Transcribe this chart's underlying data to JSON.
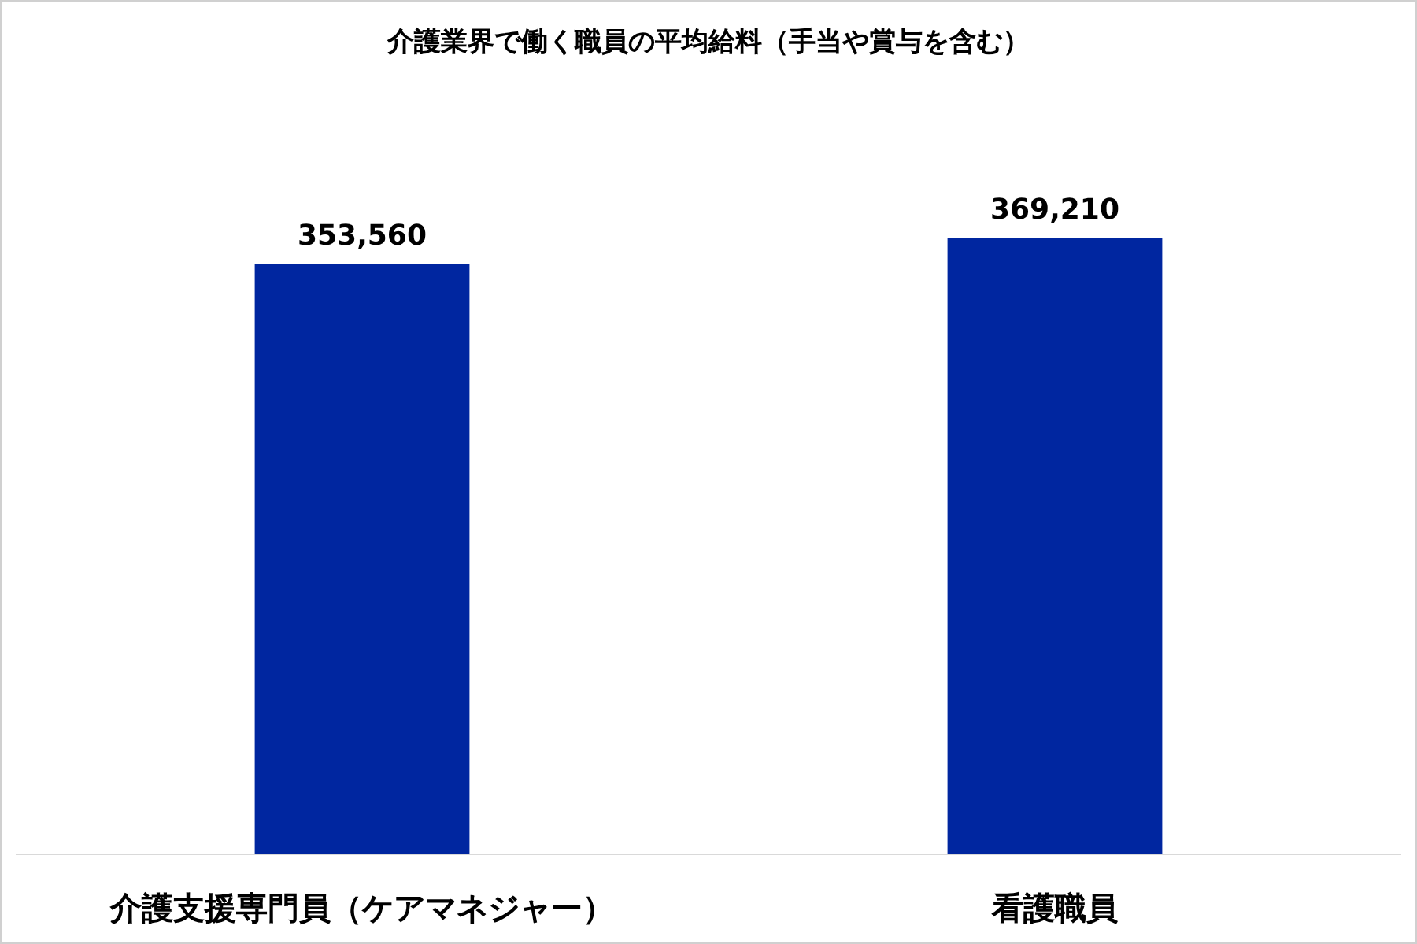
{
  "chart_data": {
    "type": "bar",
    "title": "介護業界で働く職員の平均給料（手当や賞与を含む）",
    "categories": [
      "介護支援専門員（ケアマネジャー）",
      "看護職員"
    ],
    "values": [
      353560,
      369210
    ],
    "value_labels": [
      "353,560",
      "369,210"
    ],
    "color": "#0026a0"
  }
}
